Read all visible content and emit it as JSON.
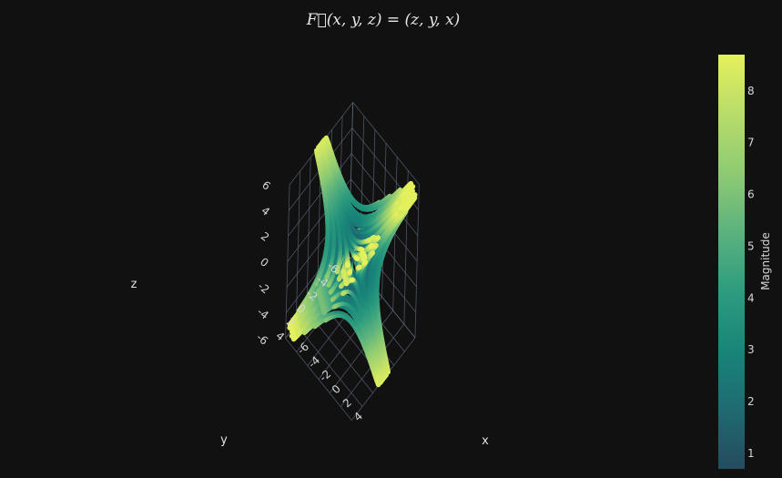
{
  "chart_data": {
    "type": "streamtube",
    "title": "F⃗(x, y, z) = (z, y, x)",
    "field": [
      "z",
      "y",
      "x"
    ],
    "axes": {
      "x": {
        "label": "x",
        "range": [
          -6,
          6
        ],
        "ticks": [
          "-6",
          "-4",
          "-2",
          "0",
          "2",
          "4"
        ]
      },
      "y": {
        "label": "y",
        "range": [
          -6,
          6
        ],
        "ticks": [
          "-6",
          "-4",
          "-2",
          "0",
          "2",
          "4"
        ]
      },
      "z": {
        "label": "z",
        "range": [
          -6,
          6
        ],
        "ticks": [
          "-6",
          "-4",
          "-2",
          "0",
          "2",
          "4",
          "6"
        ]
      }
    },
    "grid": true,
    "colorbar": {
      "title": "Magnitude",
      "range": [
        0.7,
        8.7
      ],
      "ticks": [
        "1",
        "2",
        "3",
        "4",
        "5",
        "6",
        "7",
        "8"
      ],
      "colorscale": [
        "#244C5E",
        "#1F6A71",
        "#188579",
        "#2E9C7E",
        "#5BB27F",
        "#8ECB72",
        "#B8DC6A",
        "#E4F05C"
      ]
    }
  },
  "colors": {
    "background": "#111111",
    "grid": "#5f6b7d",
    "text": "#d6d6d6"
  }
}
